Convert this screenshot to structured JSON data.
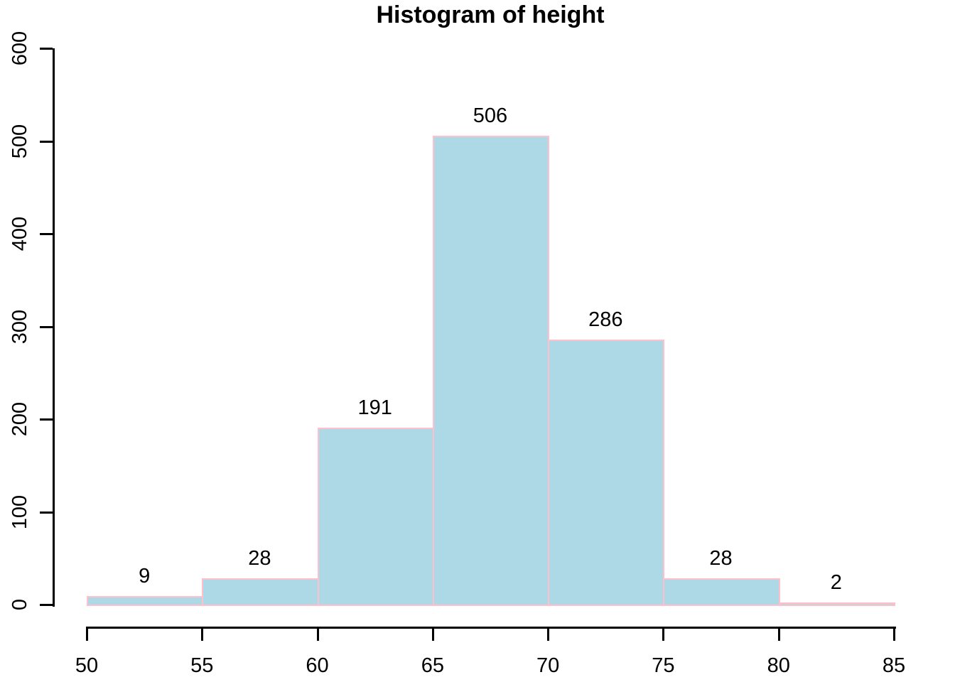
{
  "title": "Histogram of height",
  "colors": {
    "bar_fill": "#ADD8E6",
    "bar_border": "#FFC0CB",
    "axis": "#000000",
    "text": "#000000",
    "background": "#FFFFFF"
  },
  "chart_data": {
    "type": "bar",
    "subtype": "histogram",
    "title": "Histogram of height",
    "xlabel": "",
    "ylabel": "",
    "xlim": [
      50,
      85
    ],
    "ylim": [
      0,
      600
    ],
    "grid": false,
    "legend": false,
    "bin_width": 5,
    "bins": [
      {
        "range": [
          50,
          55
        ],
        "count": 9,
        "label": "9"
      },
      {
        "range": [
          55,
          60
        ],
        "count": 28,
        "label": "28"
      },
      {
        "range": [
          60,
          65
        ],
        "count": 191,
        "label": "191"
      },
      {
        "range": [
          65,
          70
        ],
        "count": 506,
        "label": "506"
      },
      {
        "range": [
          70,
          75
        ],
        "count": 286,
        "label": "286"
      },
      {
        "range": [
          75,
          80
        ],
        "count": 28,
        "label": "28"
      },
      {
        "range": [
          80,
          85
        ],
        "count": 2,
        "label": "2"
      }
    ],
    "categories": [
      "50-55",
      "55-60",
      "60-65",
      "65-70",
      "70-75",
      "75-80",
      "80-85"
    ],
    "values": [
      9,
      28,
      191,
      506,
      286,
      28,
      2
    ],
    "x_ticks": [
      "50",
      "55",
      "60",
      "65",
      "70",
      "75",
      "80",
      "85"
    ],
    "y_ticks": [
      "0",
      "100",
      "200",
      "300",
      "400",
      "500",
      "600"
    ]
  }
}
